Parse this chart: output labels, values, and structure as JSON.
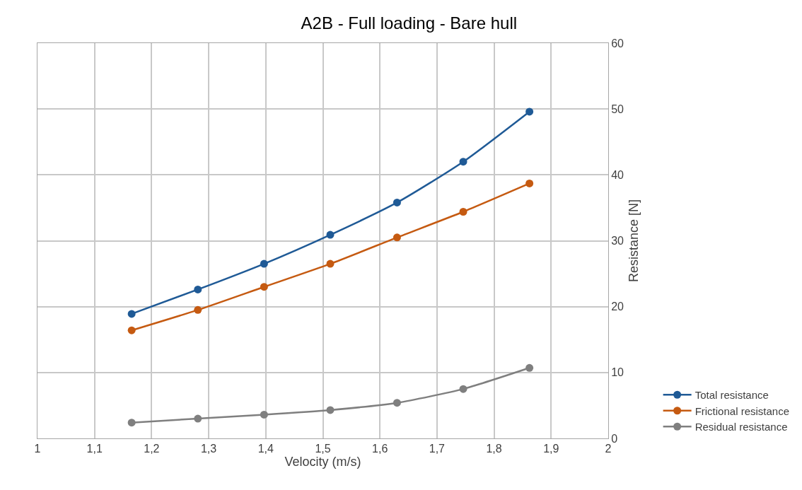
{
  "chart_data": {
    "type": "line",
    "title": "A2B - Full loading - Bare hull",
    "xlabel": "Velocity (m/s)",
    "ylabel": "Resistance [N]",
    "x": [
      1.165,
      1.281,
      1.397,
      1.513,
      1.63,
      1.746,
      1.862
    ],
    "series": [
      {
        "name": "Total resistance",
        "color": "#1f5a96",
        "values": [
          18.9,
          22.6,
          26.5,
          30.9,
          35.8,
          42.0,
          49.6
        ]
      },
      {
        "name": "Frictional resistance",
        "color": "#c55a11",
        "values": [
          16.4,
          19.5,
          23.0,
          26.5,
          30.5,
          34.4,
          38.7
        ]
      },
      {
        "name": "Residual resistance",
        "color": "#7f7f7f",
        "values": [
          2.4,
          3.0,
          3.6,
          4.3,
          5.4,
          7.5,
          10.7
        ]
      }
    ],
    "xlim": [
      1,
      2
    ],
    "xticks": [
      1,
      {
        "value": 1.1,
        "label": "1,1"
      },
      {
        "value": 1.2,
        "label": "1,2"
      },
      {
        "value": 1.3,
        "label": "1,3"
      },
      {
        "value": 1.4,
        "label": "1,4"
      },
      {
        "value": 1.5,
        "label": "1,5"
      },
      {
        "value": 1.6,
        "label": "1,6"
      },
      {
        "value": 1.7,
        "label": "1,7"
      },
      {
        "value": 1.8,
        "label": "1,8"
      },
      {
        "value": 1.9,
        "label": "1,9"
      },
      2
    ],
    "ylim": [
      0,
      60
    ],
    "yticks": [
      0,
      10,
      20,
      30,
      40,
      50,
      60
    ],
    "grid": true,
    "legend": "bottom right",
    "marker": "circle",
    "line_style": "solid"
  }
}
